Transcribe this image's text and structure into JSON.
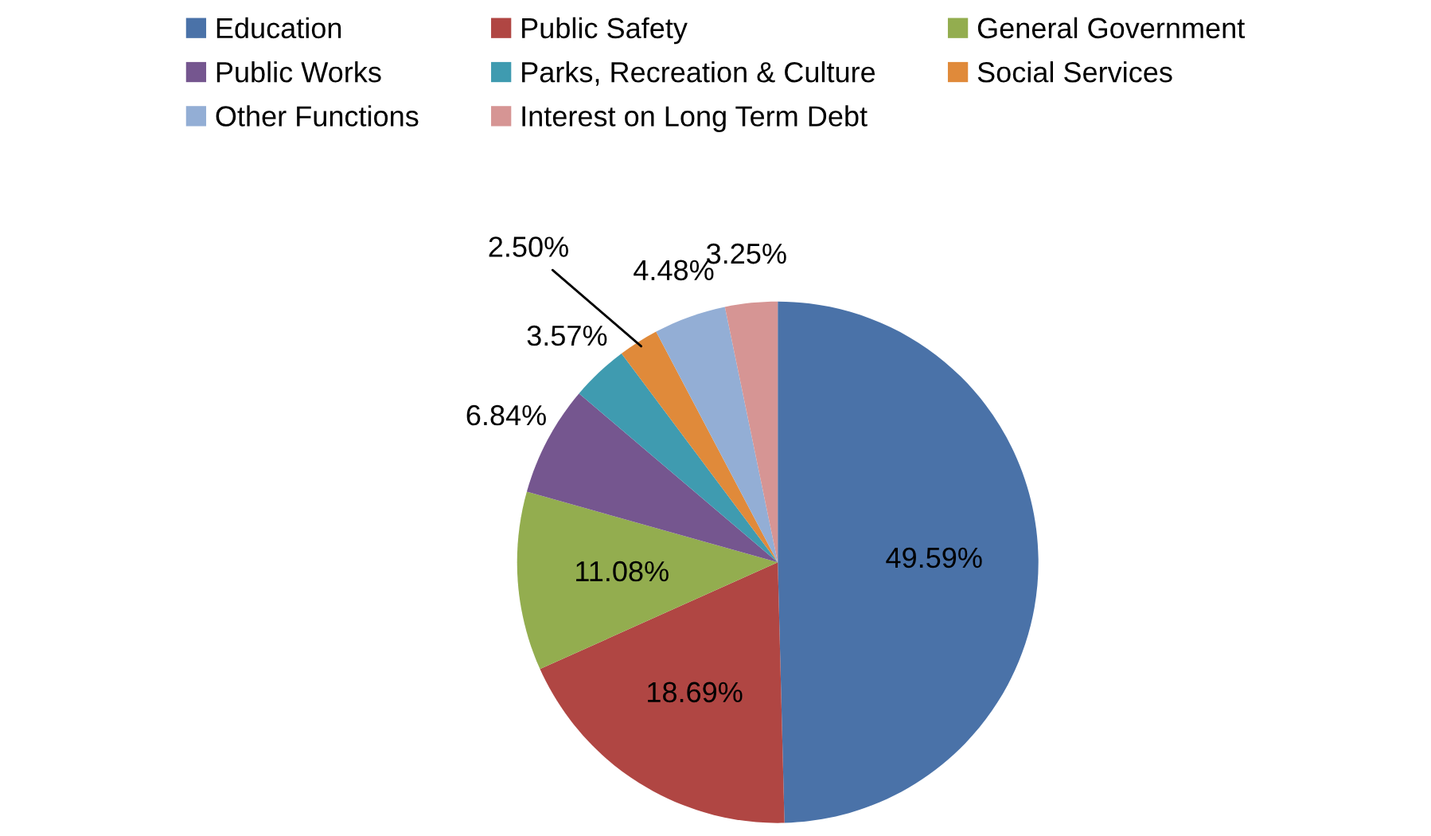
{
  "chart_data": {
    "type": "pie",
    "categories": [
      "Education",
      "Public Safety",
      "General Government",
      "Public Works",
      "Parks, Recreation & Culture",
      "Social Services",
      "Other Functions",
      "Interest on Long Term Debt"
    ],
    "values": [
      49.59,
      18.69,
      11.08,
      6.84,
      3.57,
      2.5,
      4.48,
      3.25
    ],
    "value_labels": [
      "49.59%",
      "18.69%",
      "11.08%",
      "6.84%",
      "3.57%",
      "2.50%",
      "4.48%",
      "3.25%"
    ],
    "colors": [
      "#4a72a8",
      "#b04643",
      "#93ad4f",
      "#75568f",
      "#3f9bb0",
      "#e08a3a",
      "#93aed5",
      "#d69594"
    ],
    "legend": "top"
  }
}
